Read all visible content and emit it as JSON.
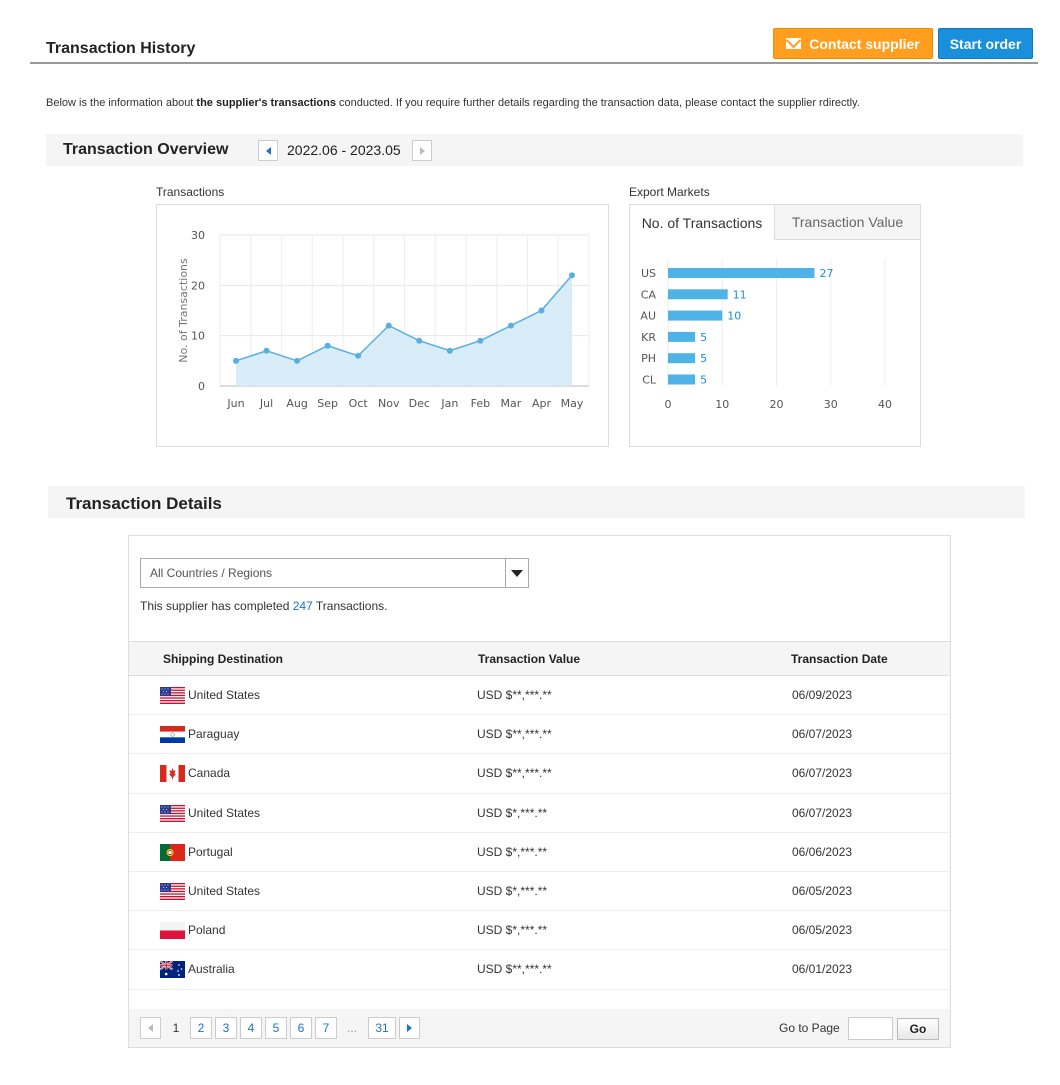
{
  "header": {
    "title": "Transaction History",
    "contact_label": "Contact supplier",
    "start_label": "Start order"
  },
  "intro": {
    "part1": "Below is the information about ",
    "bold": "the supplier's transactions",
    "part2": " conducted. If you require further details regarding the transaction data, please contact the supplier  rdirectly."
  },
  "overview": {
    "title": "Transaction Overview",
    "period": "2022.06 - 2023.05",
    "transactions_label": "Transactions",
    "markets_label": "Export Markets",
    "tabs": [
      "No. of Transactions",
      "Transaction Value"
    ]
  },
  "chart_data": [
    {
      "type": "area",
      "ylabel": "No. of Transactions",
      "xlabel": "",
      "categories": [
        "Jun",
        "Jul",
        "Aug",
        "Sep",
        "Oct",
        "Nov",
        "Dec",
        "Jan",
        "Feb",
        "Mar",
        "Apr",
        "May"
      ],
      "values": [
        5,
        7,
        5,
        8,
        6,
        12,
        9,
        7,
        9,
        12,
        15,
        22
      ],
      "ylim": [
        0,
        30
      ],
      "yticks": [
        0,
        10,
        20,
        30
      ],
      "grid": true,
      "color": "#5aaee0"
    },
    {
      "type": "bar",
      "orientation": "horizontal",
      "categories": [
        "US",
        "CA",
        "AU",
        "KR",
        "PH",
        "CL"
      ],
      "values": [
        27,
        11,
        10,
        5,
        5,
        5
      ],
      "xlim": [
        0,
        40
      ],
      "xticks": [
        0,
        10,
        20,
        30,
        40
      ],
      "grid": true,
      "color": "#4fb3e8"
    }
  ],
  "details": {
    "title": "Transaction Details",
    "filter_value": "All Countries / Regions",
    "summary_pre": "This supplier has completed ",
    "summary_count": "247",
    "summary_post": " Transactions.",
    "columns": [
      "Shipping Destination",
      "Transaction Value",
      "Transaction Date"
    ],
    "rows": [
      {
        "country": "United States",
        "flag": "us-flag-icon",
        "value": "USD $**,***.**",
        "date": "06/09/2023"
      },
      {
        "country": "Paraguay",
        "flag": "paraguay-flag-icon",
        "value": "USD $**,***.**",
        "date": "06/07/2023"
      },
      {
        "country": "Canada",
        "flag": "canada-flag-icon",
        "value": "USD $**,***.**",
        "date": "06/07/2023"
      },
      {
        "country": "United States",
        "flag": "us-flag-icon",
        "value": "USD $*,***.**",
        "date": "06/07/2023"
      },
      {
        "country": "Portugal",
        "flag": "portugal-flag-icon",
        "value": "USD $*,***.**",
        "date": "06/06/2023"
      },
      {
        "country": "United States",
        "flag": "us-flag-icon",
        "value": "USD $*,***.**",
        "date": "06/05/2023"
      },
      {
        "country": "Poland",
        "flag": "poland-flag-icon",
        "value": "USD $*,***.**",
        "date": "06/05/2023"
      },
      {
        "country": "Australia",
        "flag": "australia-flag-icon",
        "value": "USD $**,***.**",
        "date": "06/01/2023"
      }
    ],
    "pagination": {
      "pages": [
        "1",
        "2",
        "3",
        "4",
        "5",
        "6",
        "7",
        "...",
        "31"
      ],
      "current": "1",
      "goto_label": "Go to Page",
      "go_label": "Go"
    }
  },
  "colors": {
    "contact": "#ff9e1f",
    "start": "#1a8fdc",
    "link": "#1a74c9"
  }
}
